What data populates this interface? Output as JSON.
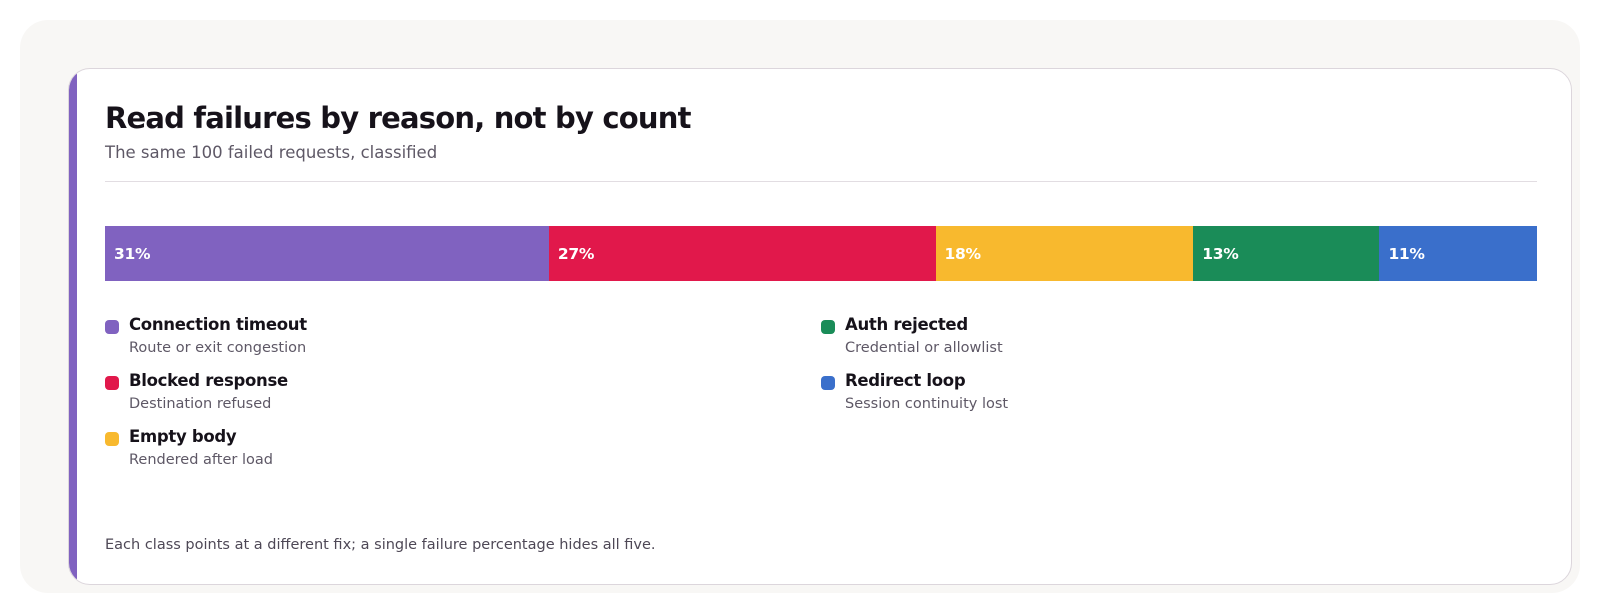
{
  "header": {
    "title": "Read failures by reason, not by count",
    "subtitle": "The same 100 failed requests, classified"
  },
  "footnote": "Each class points at a different fix; a single failure percentage hides all five.",
  "colors": {
    "accent": "#8062c0"
  },
  "chart_data": {
    "type": "bar",
    "orientation": "horizontal-stacked",
    "title": "Read failures by reason, not by count",
    "subtitle": "The same 100 failed requests, classified",
    "unit": "%",
    "grid": false,
    "legend_position": "bottom",
    "series": [
      {
        "name": "Connection timeout",
        "value": 31,
        "label": "31%",
        "description": "Route or exit congestion",
        "color": "#8062c0"
      },
      {
        "name": "Blocked response",
        "value": 27,
        "label": "27%",
        "description": "Destination refused",
        "color": "#e1184b"
      },
      {
        "name": "Empty body",
        "value": 18,
        "label": "18%",
        "description": "Rendered after load",
        "color": "#f8b92e"
      },
      {
        "name": "Auth rejected",
        "value": 13,
        "label": "13%",
        "description": "Credential or allowlist",
        "color": "#1a8c58"
      },
      {
        "name": "Redirect loop",
        "value": 11,
        "label": "11%",
        "description": "Session continuity lost",
        "color": "#3a6fcb"
      }
    ]
  }
}
